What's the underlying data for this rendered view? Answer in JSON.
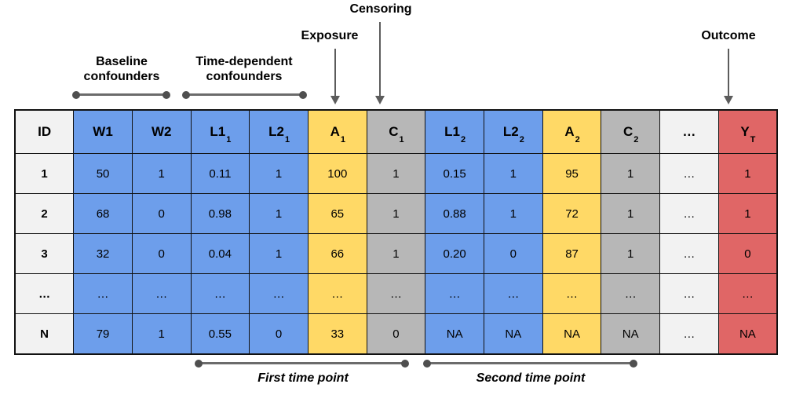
{
  "colors": {
    "blue": "#6D9EEB",
    "yellow": "#FFD966",
    "gray": "#B7B7B7",
    "lightgray": "#F2F2F2",
    "red": "#E06666",
    "annotation": "#5c5c5c"
  },
  "annotations": {
    "censoring": {
      "label": "Censoring"
    },
    "exposure": {
      "label": "Exposure"
    },
    "outcome": {
      "label": "Outcome"
    },
    "baseline_confounders": {
      "label": "Baseline\nconfounders"
    },
    "time_dependent_confounders": {
      "label": "Time-dependent\nconfounders"
    },
    "first_time_point": {
      "label": "First time point"
    },
    "second_time_point": {
      "label": "Second time point"
    }
  },
  "table": {
    "columns": [
      {
        "id": "id",
        "base": "ID",
        "sub": "",
        "color": "lightgray"
      },
      {
        "id": "w1",
        "base": "W1",
        "sub": "",
        "color": "blue"
      },
      {
        "id": "w2",
        "base": "W2",
        "sub": "",
        "color": "blue"
      },
      {
        "id": "l1-1",
        "base": "L1",
        "sub": "1",
        "color": "blue"
      },
      {
        "id": "l2-1",
        "base": "L2",
        "sub": "1",
        "color": "blue"
      },
      {
        "id": "a1",
        "base": "A",
        "sub": "1",
        "color": "yellow"
      },
      {
        "id": "c1",
        "base": "C",
        "sub": "1",
        "color": "gray"
      },
      {
        "id": "l1-2",
        "base": "L1",
        "sub": "2",
        "color": "blue"
      },
      {
        "id": "l2-2",
        "base": "L2",
        "sub": "2",
        "color": "blue"
      },
      {
        "id": "a2",
        "base": "A",
        "sub": "2",
        "color": "yellow"
      },
      {
        "id": "c2",
        "base": "C",
        "sub": "2",
        "color": "gray"
      },
      {
        "id": "dots",
        "base": "…",
        "sub": "",
        "color": "lightgray"
      },
      {
        "id": "yt",
        "base": "Y",
        "sub": "T",
        "color": "red"
      }
    ],
    "rows": [
      {
        "cells": [
          "1",
          "50",
          "1",
          "0.11",
          "1",
          "100",
          "1",
          "0.15",
          "1",
          "95",
          "1",
          "…",
          "1"
        ]
      },
      {
        "cells": [
          "2",
          "68",
          "0",
          "0.98",
          "1",
          "65",
          "1",
          "0.88",
          "1",
          "72",
          "1",
          "…",
          "1"
        ]
      },
      {
        "cells": [
          "3",
          "32",
          "0",
          "0.04",
          "1",
          "66",
          "1",
          "0.20",
          "0",
          "87",
          "1",
          "…",
          "0"
        ]
      },
      {
        "cells": [
          "…",
          "…",
          "…",
          "…",
          "…",
          "…",
          "…",
          "…",
          "…",
          "…",
          "…",
          "…",
          "…"
        ]
      },
      {
        "cells": [
          "N",
          "79",
          "1",
          "0.55",
          "0",
          "33",
          "0",
          "NA",
          "NA",
          "NA",
          "NA",
          "…",
          "NA"
        ]
      }
    ]
  }
}
